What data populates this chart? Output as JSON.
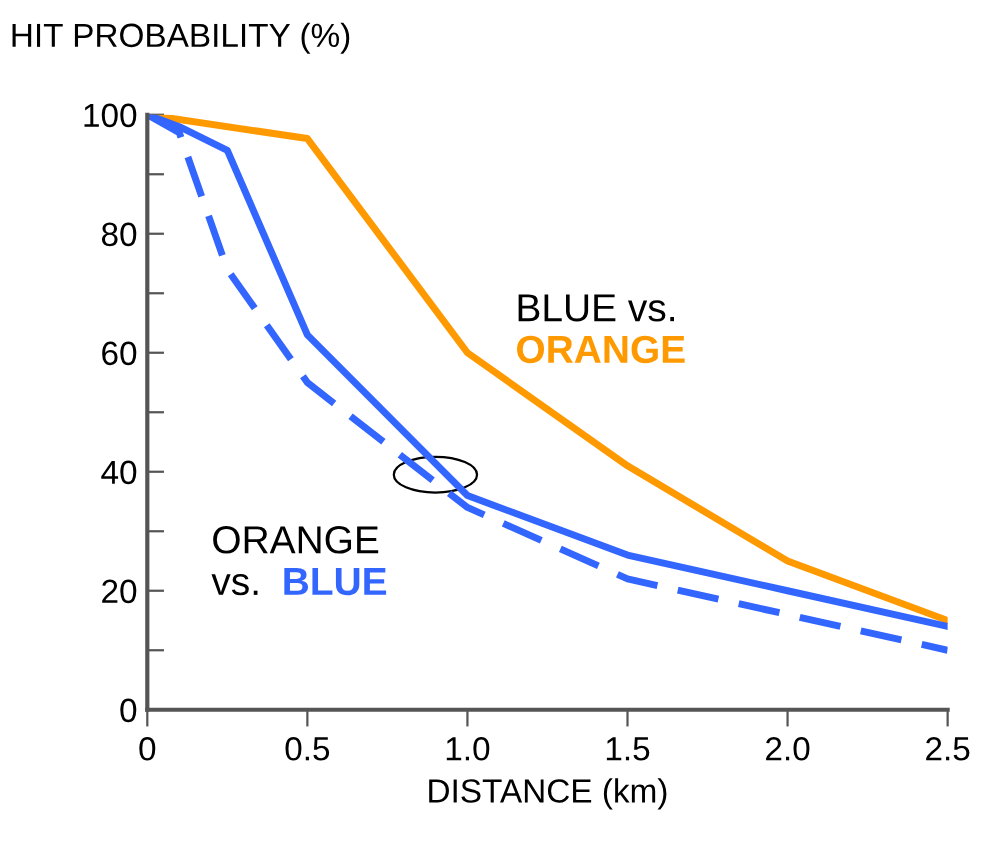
{
  "chart_data": {
    "type": "line",
    "ylabel": "HIT PROBABILITY (%)",
    "xlabel": "DISTANCE (km)",
    "xlim": [
      0,
      2.5
    ],
    "xticks": [
      0,
      0.5,
      {
        "value": 1,
        "label": "1.0"
      },
      1.5,
      {
        "value": 2,
        "label": "2.0"
      },
      2.5
    ],
    "ylim": [
      0,
      100
    ],
    "yticks": [
      0,
      {
        "value": 10,
        "label": null
      },
      20,
      {
        "value": 30,
        "label": null
      },
      40,
      {
        "value": 50,
        "label": null
      },
      60,
      {
        "value": 70,
        "label": null
      },
      80,
      {
        "value": 90,
        "label": null
      },
      100
    ],
    "grid": false,
    "legend": false,
    "series": [
      {
        "color": "#ff9900",
        "line_style": "solid",
        "x": [
          0,
          0.5,
          1.0,
          1.5,
          2.0,
          2.5
        ],
        "values": [
          100,
          96,
          60,
          41,
          25,
          15
        ]
      },
      {
        "color": "#3366ff",
        "line_style": "solid",
        "x": [
          0,
          0.1,
          0.25,
          0.5,
          1.0,
          1.5,
          2.0,
          2.5
        ],
        "values": [
          100,
          98,
          94,
          63,
          36,
          26,
          20,
          14
        ]
      },
      {
        "color": "#3366ff",
        "line_style": "dashed",
        "x": [
          0,
          0.1,
          0.25,
          0.5,
          1.0,
          1.5,
          2.0,
          2.5
        ],
        "values": [
          100,
          97,
          74,
          55,
          34,
          22,
          16,
          10
        ]
      }
    ],
    "annotations": [
      "BLUE vs.",
      "ORANGE",
      "ORANGE",
      "vs.",
      "BLUE"
    ]
  }
}
